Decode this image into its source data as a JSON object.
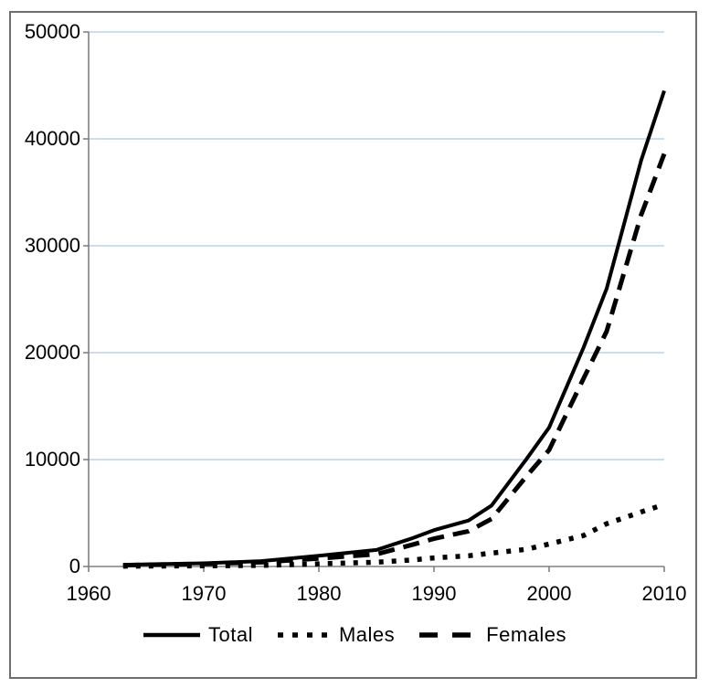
{
  "figure": {
    "background": "#ffffff",
    "frame_border_color": "#6e6e6e"
  },
  "chart_data": {
    "type": "line",
    "title": "",
    "xlabel": "",
    "ylabel": "",
    "xlim": [
      1960,
      2010
    ],
    "ylim": [
      0,
      50000
    ],
    "x_ticks": [
      1960,
      1970,
      1980,
      1990,
      2000,
      2010
    ],
    "y_ticks": [
      0,
      10000,
      20000,
      30000,
      40000,
      50000
    ],
    "grid": "horizontal",
    "gridline_color": "#b8d4ea",
    "axis_color": "#808080",
    "tick_label_color": "#000000",
    "legend_position": "bottom-center",
    "x": [
      1963,
      1965,
      1970,
      1975,
      1980,
      1985,
      1988,
      1990,
      1993,
      1995,
      1998,
      2000,
      2003,
      2005,
      2008,
      2010
    ],
    "series": [
      {
        "name": "Total",
        "style": "solid",
        "color": "#000000",
        "values": [
          150,
          200,
          300,
          500,
          1000,
          1550,
          2600,
          3400,
          4300,
          5700,
          10000,
          13000,
          20500,
          26000,
          38000,
          44500
        ]
      },
      {
        "name": "Males",
        "style": "dotted",
        "color": "#000000",
        "values": [
          30,
          40,
          60,
          100,
          250,
          400,
          600,
          800,
          1000,
          1250,
          1600,
          2100,
          2900,
          4000,
          5100,
          5800
        ]
      },
      {
        "name": "Females",
        "style": "dashed",
        "color": "#000000",
        "values": [
          120,
          160,
          240,
          400,
          750,
          1150,
          2000,
          2600,
          3300,
          4450,
          8400,
          10900,
          17600,
          22000,
          32900,
          38600
        ]
      }
    ]
  }
}
